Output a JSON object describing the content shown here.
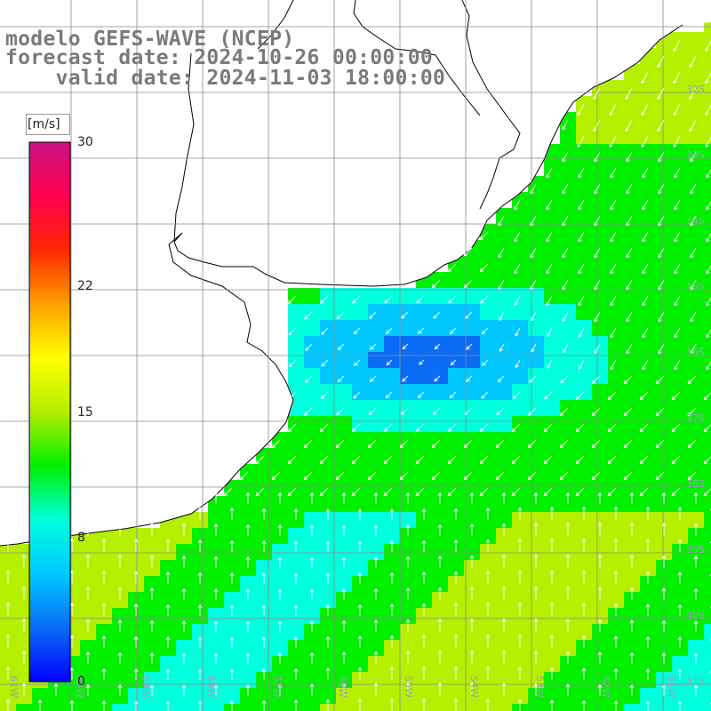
{
  "title": {
    "line1": "modelo GEFS-WAVE (NCEP)",
    "line2": "forecast date: 2024-10-26 00:00:00",
    "line3": "    valid date: 2024-11-03 18:00:00"
  },
  "colorbar": {
    "unit": "[m/s]",
    "ticks": [
      {
        "value": 30,
        "label": "30"
      },
      {
        "value": 22,
        "label": "22"
      },
      {
        "value": 15,
        "label": "15"
      },
      {
        "value": 8,
        "label": "8"
      },
      {
        "value": 0,
        "label": "0"
      }
    ],
    "colors": [
      "#0000ff",
      "#0a6cf5",
      "#00c8ff",
      "#00ffdc",
      "#00f000",
      "#b4f000",
      "#ffff00",
      "#ffa000",
      "#ff2800",
      "#ff0050",
      "#c81482"
    ]
  },
  "grid": {
    "longitude_labels": [
      "61W",
      "60W",
      "59W",
      "58W",
      "57W",
      "56W",
      "55W",
      "54W",
      "53W",
      "52W",
      "51W"
    ],
    "latitude_labels": [
      "32S",
      "33S",
      "34S",
      "35S",
      "36S",
      "37S",
      "38S",
      "39S",
      "40S",
      "41S"
    ]
  },
  "map": {
    "land_color": "#ffffff",
    "coastline_color": "#000000",
    "grid_color": "#8a8a8a",
    "arrow_color": "#ffffff"
  }
}
